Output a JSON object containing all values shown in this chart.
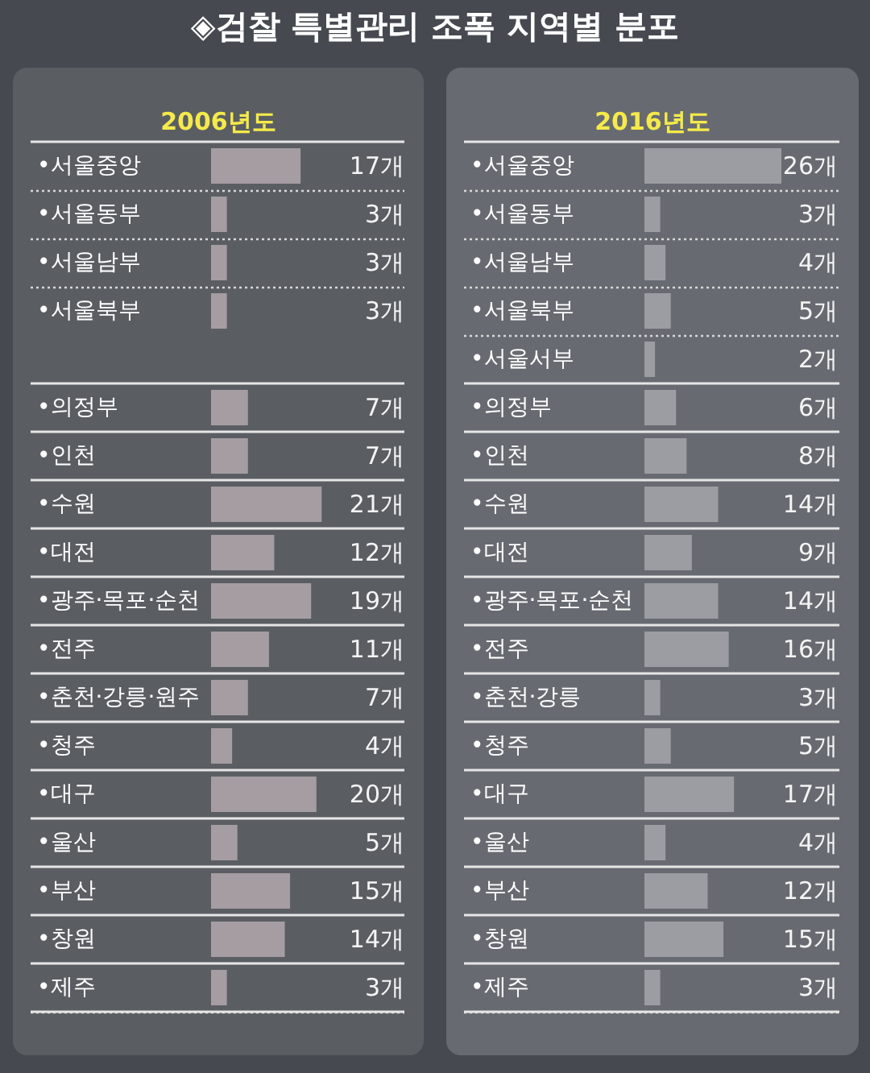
{
  "chart_data": [
    {
      "type": "bar",
      "orientation": "horizontal",
      "title": "◈검찰 특별관리 조폭 지역별 분포",
      "subtitle": "2006년도",
      "categories": [
        "•서울중앙",
        "•서울동부",
        "•서울남부",
        "•서울북부",
        null,
        "•의정부",
        "•인천",
        "•수원",
        "•대전",
        "•광주·목포·순천",
        "•전주",
        "•춘천·강릉·원주",
        "•청주",
        "•대구",
        "•울산",
        "•부산",
        "•창원",
        "•제주"
      ],
      "values": [
        17,
        3,
        3,
        3,
        null,
        7,
        7,
        21,
        12,
        19,
        11,
        7,
        4,
        20,
        5,
        15,
        14,
        3
      ],
      "value_labels": [
        "17개",
        "3개",
        "3개",
        "3개",
        null,
        "7개",
        "7개",
        "21개",
        "12개",
        "19개",
        "11개",
        "7개",
        "4개",
        "20개",
        "5개",
        "15개",
        "14개",
        "3개"
      ],
      "color": "#a59da2",
      "grid": "y",
      "tick_labels": "y"
    },
    {
      "type": "bar",
      "orientation": "horizontal",
      "subtitle": "2016년도",
      "categories": [
        "•서울중앙",
        "•서울동부",
        "•서울남부",
        "•서울북부",
        "•서울서부",
        "•의정부",
        "•인천",
        "•수원",
        "•대전",
        "•광주·목포·순천",
        "•전주",
        "•춘천·강릉",
        "•청주",
        "•대구",
        "•울산",
        "•부산",
        "•창원",
        "•제주"
      ],
      "values": [
        26,
        3,
        4,
        5,
        2,
        6,
        8,
        14,
        9,
        14,
        16,
        3,
        5,
        17,
        4,
        12,
        15,
        3
      ],
      "value_labels": [
        "26개",
        "3개",
        "4개",
        "5개",
        "2개",
        "6개",
        "8개",
        "14개",
        "9개",
        "14개",
        "16개",
        "3개",
        "5개",
        "17개",
        "4개",
        "12개",
        "15개",
        "3개"
      ],
      "color": "#9b9da3",
      "grid": "y",
      "tick_labels": "y"
    }
  ]
}
